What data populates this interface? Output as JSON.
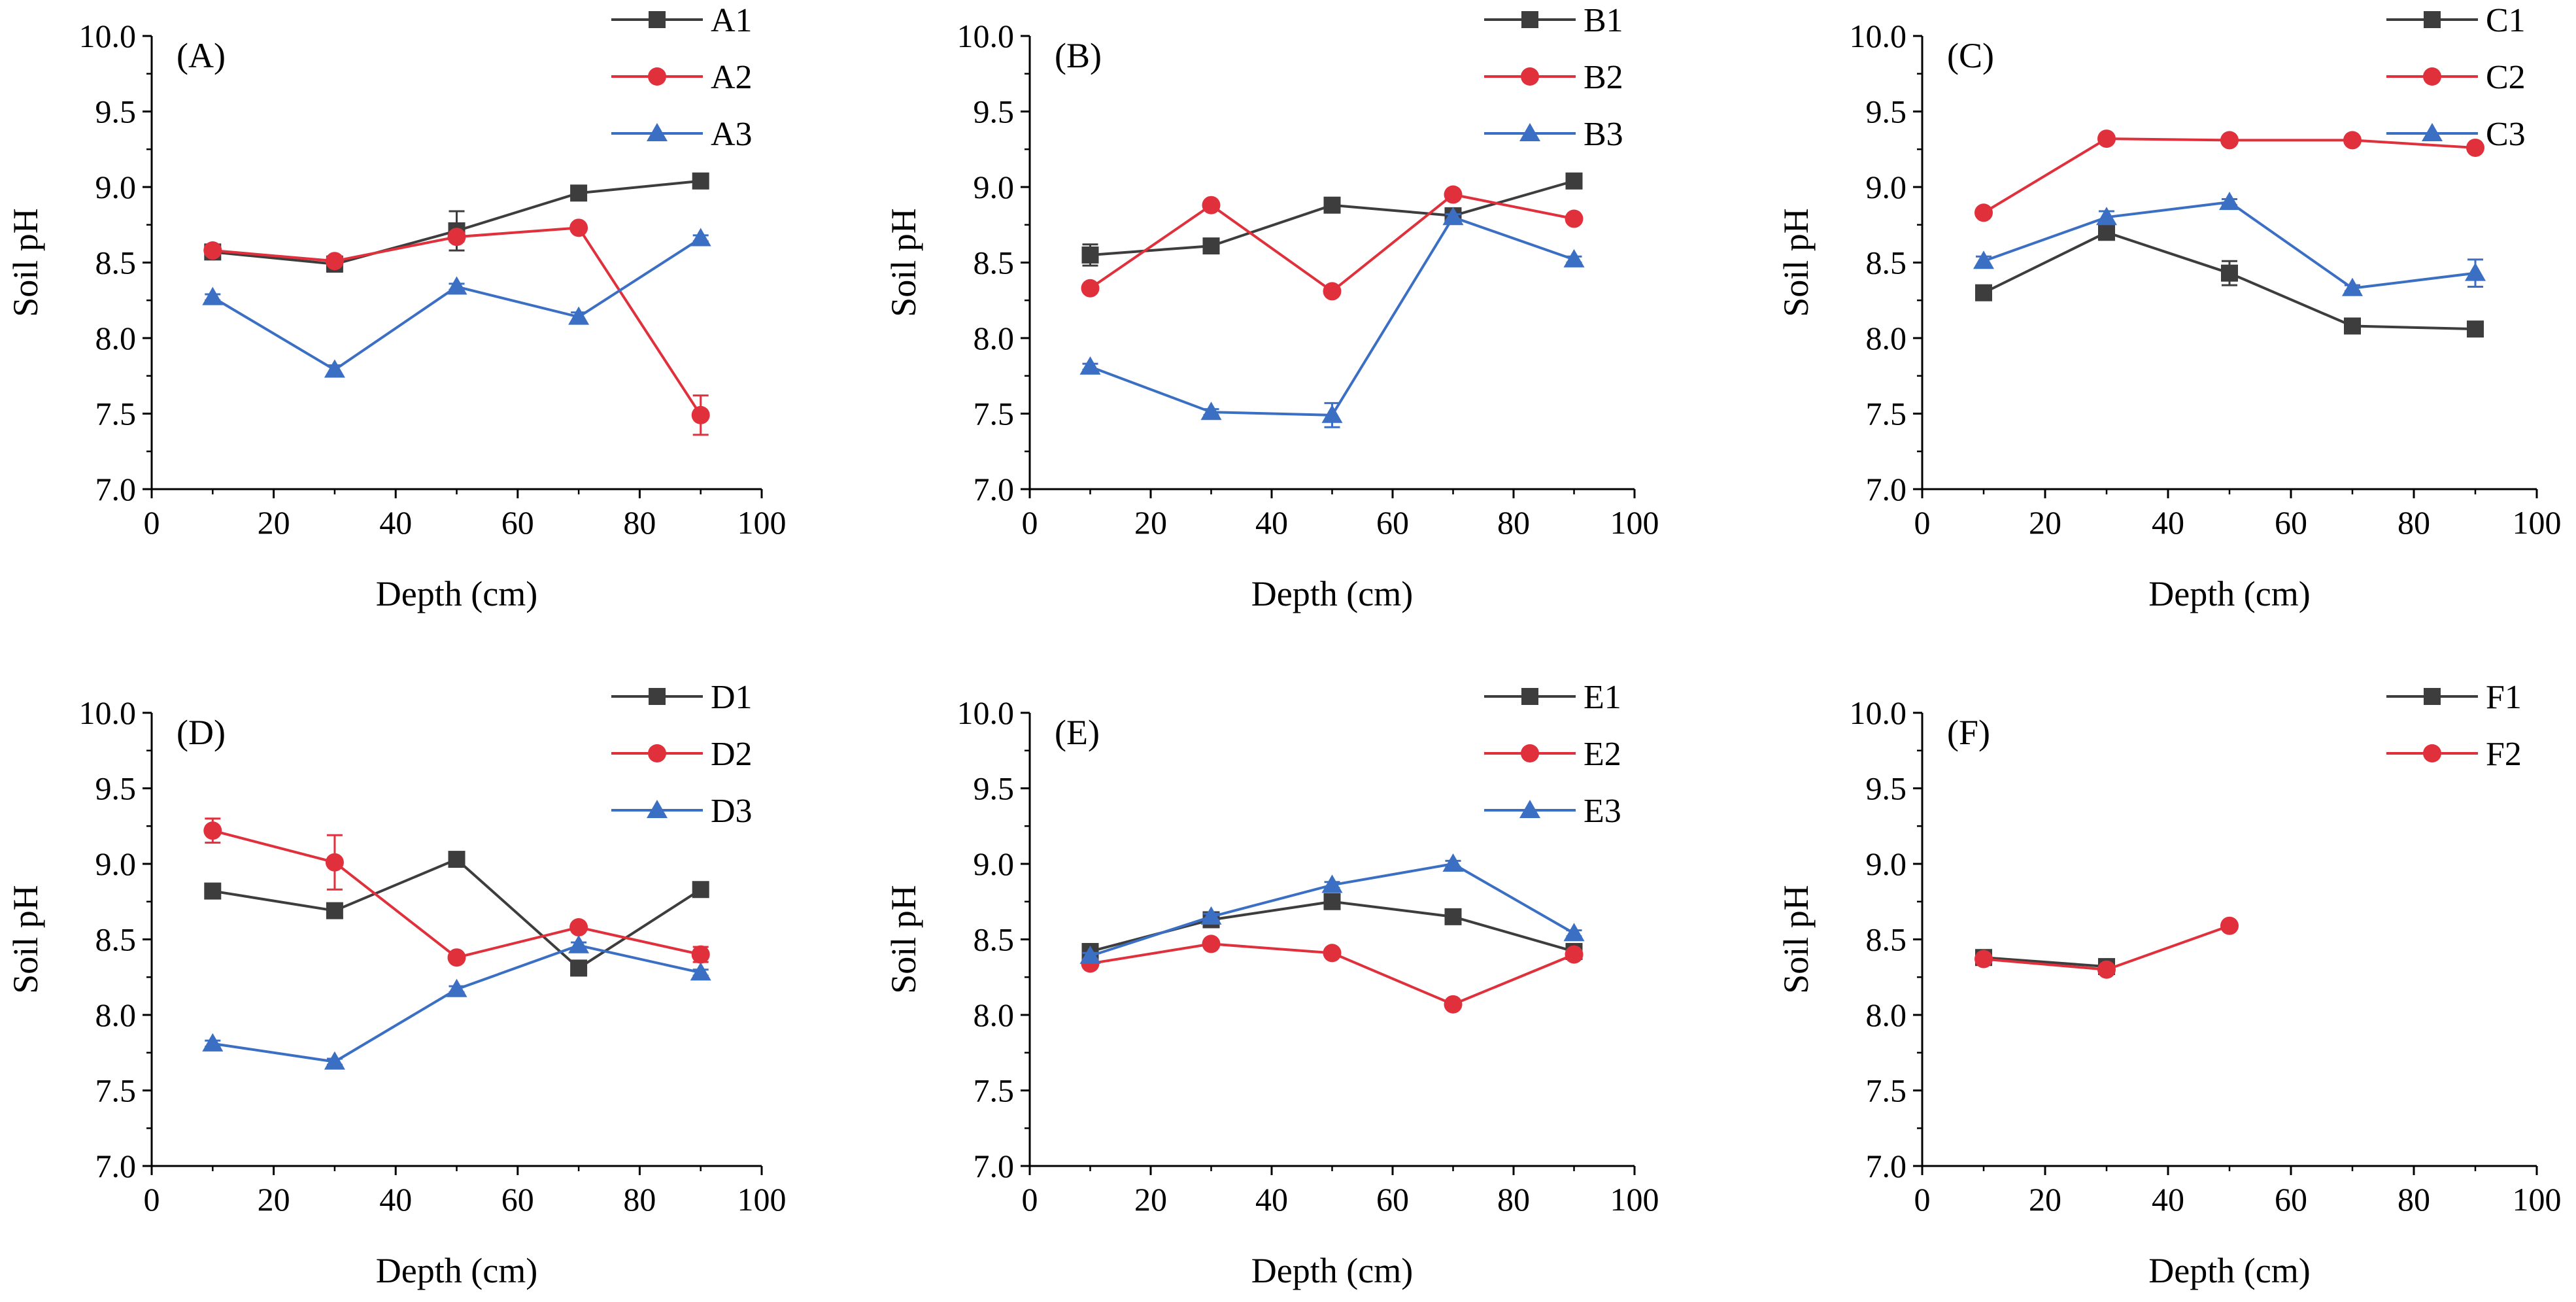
{
  "chart_data": [
    {
      "type": "line",
      "panel_label": "(A)",
      "xlabel": "Depth (cm)",
      "ylabel": "Soil pH",
      "xlim": [
        0,
        100
      ],
      "ylim": [
        7.0,
        10.0
      ],
      "xticks": [
        "0",
        "20",
        "40",
        "60",
        "80",
        "100"
      ],
      "yticks": [
        "7.0",
        "7.5",
        "8.0",
        "8.5",
        "9.0",
        "9.5",
        "10.0"
      ],
      "legend_position": "top-right",
      "grid": false,
      "series": [
        {
          "name": "A1",
          "color": "#3d3d3d",
          "marker": "square",
          "x": [
            10,
            30,
            50,
            70,
            90
          ],
          "y": [
            8.57,
            8.49,
            8.71,
            8.96,
            9.04
          ],
          "err": [
            0.03,
            0.05,
            0.13,
            0.02,
            0.02
          ]
        },
        {
          "name": "A2",
          "color": "#e0303c",
          "marker": "circle",
          "x": [
            10,
            30,
            50,
            70,
            90
          ],
          "y": [
            8.58,
            8.51,
            8.67,
            8.73,
            7.49
          ],
          "err": [
            0.02,
            0.02,
            0.03,
            0.02,
            0.13
          ]
        },
        {
          "name": "A3",
          "color": "#3b6fc4",
          "marker": "triangle",
          "x": [
            10,
            30,
            50,
            70,
            90
          ],
          "y": [
            8.27,
            7.79,
            8.34,
            8.14,
            8.66
          ],
          "err": [
            0.02,
            0.03,
            0.02,
            0.03,
            0.02
          ]
        }
      ]
    },
    {
      "type": "line",
      "panel_label": "(B)",
      "xlabel": "Depth (cm)",
      "ylabel": "Soil pH",
      "xlim": [
        0,
        100
      ],
      "ylim": [
        7.0,
        10.0
      ],
      "xticks": [
        "0",
        "20",
        "40",
        "60",
        "80",
        "100"
      ],
      "yticks": [
        "7.0",
        "7.5",
        "8.0",
        "8.5",
        "9.0",
        "9.5",
        "10.0"
      ],
      "legend_position": "top-right",
      "grid": false,
      "series": [
        {
          "name": "B1",
          "color": "#3d3d3d",
          "marker": "square",
          "x": [
            10,
            30,
            50,
            70,
            90
          ],
          "y": [
            8.55,
            8.61,
            8.88,
            8.81,
            9.04
          ],
          "err": [
            0.07,
            0.02,
            0.04,
            0.02,
            0.02
          ]
        },
        {
          "name": "B2",
          "color": "#e0303c",
          "marker": "circle",
          "x": [
            10,
            30,
            50,
            70,
            90
          ],
          "y": [
            8.33,
            8.88,
            8.31,
            8.95,
            8.79
          ],
          "err": [
            0.02,
            0.02,
            0.02,
            0.02,
            0.02
          ]
        },
        {
          "name": "B3",
          "color": "#3b6fc4",
          "marker": "triangle",
          "x": [
            10,
            30,
            50,
            70,
            90
          ],
          "y": [
            7.81,
            7.51,
            7.49,
            8.8,
            8.52
          ],
          "err": [
            0.02,
            0.02,
            0.08,
            0.02,
            0.02
          ]
        }
      ]
    },
    {
      "type": "line",
      "panel_label": "(C)",
      "xlabel": "Depth (cm)",
      "ylabel": "Soil pH",
      "xlim": [
        0,
        100
      ],
      "ylim": [
        7.0,
        10.0
      ],
      "xticks": [
        "0",
        "20",
        "40",
        "60",
        "80",
        "100"
      ],
      "yticks": [
        "7.0",
        "7.5",
        "8.0",
        "8.5",
        "9.0",
        "9.5",
        "10.0"
      ],
      "legend_position": "top-right",
      "grid": false,
      "series": [
        {
          "name": "C1",
          "color": "#3d3d3d",
          "marker": "square",
          "x": [
            10,
            30,
            50,
            70,
            90
          ],
          "y": [
            8.3,
            8.7,
            8.43,
            8.08,
            8.06
          ],
          "err": [
            0.02,
            0.02,
            0.08,
            0.02,
            0.02
          ]
        },
        {
          "name": "C2",
          "color": "#e0303c",
          "marker": "circle",
          "x": [
            10,
            30,
            50,
            70,
            90
          ],
          "y": [
            8.83,
            9.32,
            9.31,
            9.31,
            9.26
          ],
          "err": [
            0.02,
            0.02,
            0.02,
            0.02,
            0.02
          ]
        },
        {
          "name": "C3",
          "color": "#3b6fc4",
          "marker": "triangle",
          "x": [
            10,
            30,
            50,
            70,
            90
          ],
          "y": [
            8.51,
            8.8,
            8.9,
            8.33,
            8.43
          ],
          "err": [
            0.03,
            0.04,
            0.02,
            0.02,
            0.09
          ]
        }
      ]
    },
    {
      "type": "line",
      "panel_label": "(D)",
      "xlabel": "Depth (cm)",
      "ylabel": "Soil pH",
      "xlim": [
        0,
        100
      ],
      "ylim": [
        7.0,
        10.0
      ],
      "xticks": [
        "0",
        "20",
        "40",
        "60",
        "80",
        "100"
      ],
      "yticks": [
        "7.0",
        "7.5",
        "8.0",
        "8.5",
        "9.0",
        "9.5",
        "10.0"
      ],
      "legend_position": "top-right",
      "grid": false,
      "series": [
        {
          "name": "D1",
          "color": "#3d3d3d",
          "marker": "square",
          "x": [
            10,
            30,
            50,
            70,
            90
          ],
          "y": [
            8.82,
            8.69,
            9.03,
            8.31,
            8.83
          ],
          "err": [
            0.02,
            0.02,
            0.02,
            0.02,
            0.02
          ]
        },
        {
          "name": "D2",
          "color": "#e0303c",
          "marker": "circle",
          "x": [
            10,
            30,
            50,
            70,
            90
          ],
          "y": [
            9.22,
            9.01,
            8.38,
            8.58,
            8.4
          ],
          "err": [
            0.08,
            0.18,
            0.02,
            0.02,
            0.05
          ]
        },
        {
          "name": "D3",
          "color": "#3b6fc4",
          "marker": "triangle",
          "x": [
            10,
            30,
            50,
            70,
            90
          ],
          "y": [
            7.81,
            7.69,
            8.17,
            8.46,
            8.28
          ],
          "err": [
            0.02,
            0.02,
            0.02,
            0.02,
            0.02
          ]
        }
      ]
    },
    {
      "type": "line",
      "panel_label": "(E)",
      "xlabel": "Depth (cm)",
      "ylabel": "Soil pH",
      "xlim": [
        0,
        100
      ],
      "ylim": [
        7.0,
        10.0
      ],
      "xticks": [
        "0",
        "20",
        "40",
        "60",
        "80",
        "100"
      ],
      "yticks": [
        "7.0",
        "7.5",
        "8.0",
        "8.5",
        "9.0",
        "9.5",
        "10.0"
      ],
      "legend_position": "top-right",
      "grid": false,
      "series": [
        {
          "name": "E1",
          "color": "#3d3d3d",
          "marker": "square",
          "x": [
            10,
            30,
            50,
            70,
            90
          ],
          "y": [
            8.42,
            8.63,
            8.75,
            8.65,
            8.42
          ],
          "err": [
            0.02,
            0.02,
            0.02,
            0.02,
            0.02
          ]
        },
        {
          "name": "E2",
          "color": "#e0303c",
          "marker": "circle",
          "x": [
            10,
            30,
            50,
            70,
            90
          ],
          "y": [
            8.34,
            8.47,
            8.41,
            8.07,
            8.4
          ],
          "err": [
            0.02,
            0.02,
            0.02,
            0.02,
            0.02
          ]
        },
        {
          "name": "E3",
          "color": "#3b6fc4",
          "marker": "triangle",
          "x": [
            10,
            30,
            50,
            70,
            90
          ],
          "y": [
            8.39,
            8.65,
            8.86,
            9.0,
            8.54
          ],
          "err": [
            0.02,
            0.02,
            0.02,
            0.02,
            0.02
          ]
        }
      ]
    },
    {
      "type": "line",
      "panel_label": "(F)",
      "xlabel": "Depth (cm)",
      "ylabel": "Soil pH",
      "xlim": [
        0,
        100
      ],
      "ylim": [
        7.0,
        10.0
      ],
      "xticks": [
        "0",
        "20",
        "40",
        "60",
        "80",
        "100"
      ],
      "yticks": [
        "7.0",
        "7.5",
        "8.0",
        "8.5",
        "9.0",
        "9.5",
        "10.0"
      ],
      "legend_position": "top-right",
      "grid": false,
      "series": [
        {
          "name": "F1",
          "color": "#3d3d3d",
          "marker": "square",
          "x": [
            10,
            30
          ],
          "y": [
            8.38,
            8.32
          ],
          "err": [
            0.02,
            0.02
          ]
        },
        {
          "name": "F2",
          "color": "#e0303c",
          "marker": "circle",
          "x": [
            10,
            30,
            50
          ],
          "y": [
            8.37,
            8.3,
            8.59
          ],
          "err": [
            0.02,
            0.02,
            0.02
          ]
        }
      ]
    }
  ]
}
